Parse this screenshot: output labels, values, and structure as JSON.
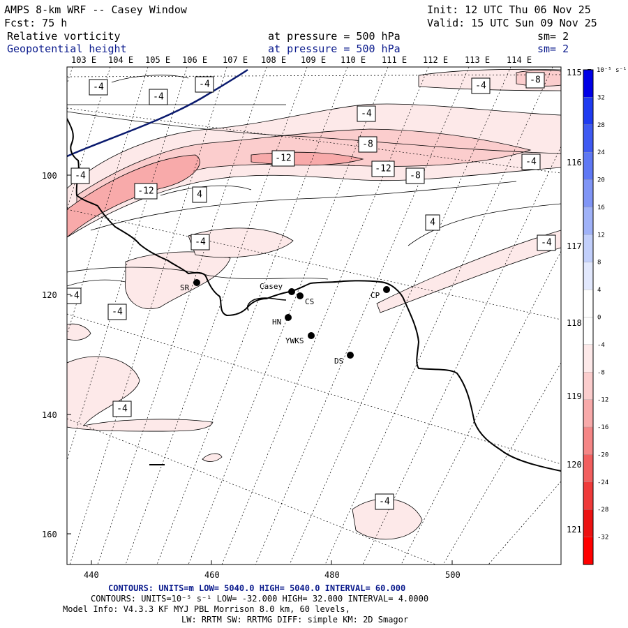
{
  "header": {
    "title": "AMPS 8-km WRF -- Casey Window",
    "forecast": "Fcst:   75 h",
    "init": "Init: 12 UTC Thu 06 Nov 25",
    "valid": "Valid: 15 UTC Sun 09 Nov 25",
    "field1": {
      "name": "Relative vorticity",
      "level": "at pressure =  500 hPa",
      "sm": "sm= 2"
    },
    "field2": {
      "name": "Geopotential height",
      "level": "at pressure =  500 hPa",
      "sm": "sm= 2"
    }
  },
  "longitudes_top": [
    "103 E",
    "104 E",
    "105 E",
    "106 E",
    "107 E",
    "108 E",
    "109 E",
    "110 E",
    "111 E",
    "112 E",
    "113 E",
    "114 E"
  ],
  "longitudes_right": [
    "115 E",
    "116 E",
    "117 E",
    "118 E",
    "119 E",
    "120 E",
    "121 E"
  ],
  "axes": {
    "x_ticks": [
      "440",
      "460",
      "480",
      "500"
    ],
    "y_ticks": [
      "100",
      "120",
      "140",
      "160"
    ]
  },
  "contour_labels": [
    {
      "id": "l1",
      "text": "-4"
    },
    {
      "id": "l2",
      "text": "-4"
    },
    {
      "id": "l3",
      "text": "-4"
    },
    {
      "id": "l4",
      "text": "-8"
    },
    {
      "id": "l5",
      "text": "-4"
    },
    {
      "id": "l6",
      "text": "-4"
    },
    {
      "id": "l7",
      "text": "-8"
    },
    {
      "id": "l8",
      "text": "-12"
    },
    {
      "id": "l9",
      "text": "-12"
    },
    {
      "id": "l10",
      "text": "-8"
    },
    {
      "id": "l11",
      "text": "-4"
    },
    {
      "id": "l12",
      "text": "-4"
    },
    {
      "id": "l13",
      "text": "-12"
    },
    {
      "id": "l14",
      "text": "4"
    },
    {
      "id": "l15",
      "text": "4"
    },
    {
      "id": "l16",
      "text": "-4"
    },
    {
      "id": "l17",
      "text": "-4"
    },
    {
      "id": "l18",
      "text": "-4"
    },
    {
      "id": "l19",
      "text": "-4"
    },
    {
      "id": "l20",
      "text": "-4"
    },
    {
      "id": "l21",
      "text": "-4"
    }
  ],
  "stations": [
    {
      "id": "sr",
      "name": "SR"
    },
    {
      "id": "casey",
      "name": "Casey"
    },
    {
      "id": "cs",
      "name": "CS"
    },
    {
      "id": "hn",
      "name": "HN"
    },
    {
      "id": "ywks",
      "name": "YWKS"
    },
    {
      "id": "ds",
      "name": "DS"
    },
    {
      "id": "cp",
      "name": "CP"
    }
  ],
  "colorbar": {
    "unit": "10⁻⁵ s⁻¹",
    "ticks": [
      "32",
      "28",
      "24",
      "20",
      "16",
      "12",
      "8",
      "4",
      "0",
      "-4",
      "-8",
      "-12",
      "-16",
      "-20",
      "-24",
      "-28",
      "-32"
    ],
    "colors": [
      "#0000e6",
      "#1f3bf0",
      "#3f5af2",
      "#5f78f4",
      "#8095f6",
      "#a0b2f8",
      "#c2cffb",
      "#e2e8fd",
      "#ffffff",
      "#ffffff",
      "#fde9e9",
      "#fbcdcd",
      "#f8aaaa",
      "#f58686",
      "#f25f5f",
      "#ef3a3a",
      "#ec1212",
      "#ff0000"
    ]
  },
  "footer": {
    "contours_height": "CONTOURS:  UNITS=m  LOW=  5040.0          HIGH=  5040.0          INTERVAL=   60.000",
    "contours_vort": "CONTOURS:  UNITS=10⁻⁵ s⁻¹   LOW= -32.000          HIGH=  32.000        INTERVAL=   4.0000",
    "model_info": "Model Info: V4.3.3    KF      MYJ PBL  Morrison            8.0 km,  60 levels,",
    "physics": "LW: RRTM SW: RRTMG   DIFF: simple KM: 2D Smagor"
  }
}
